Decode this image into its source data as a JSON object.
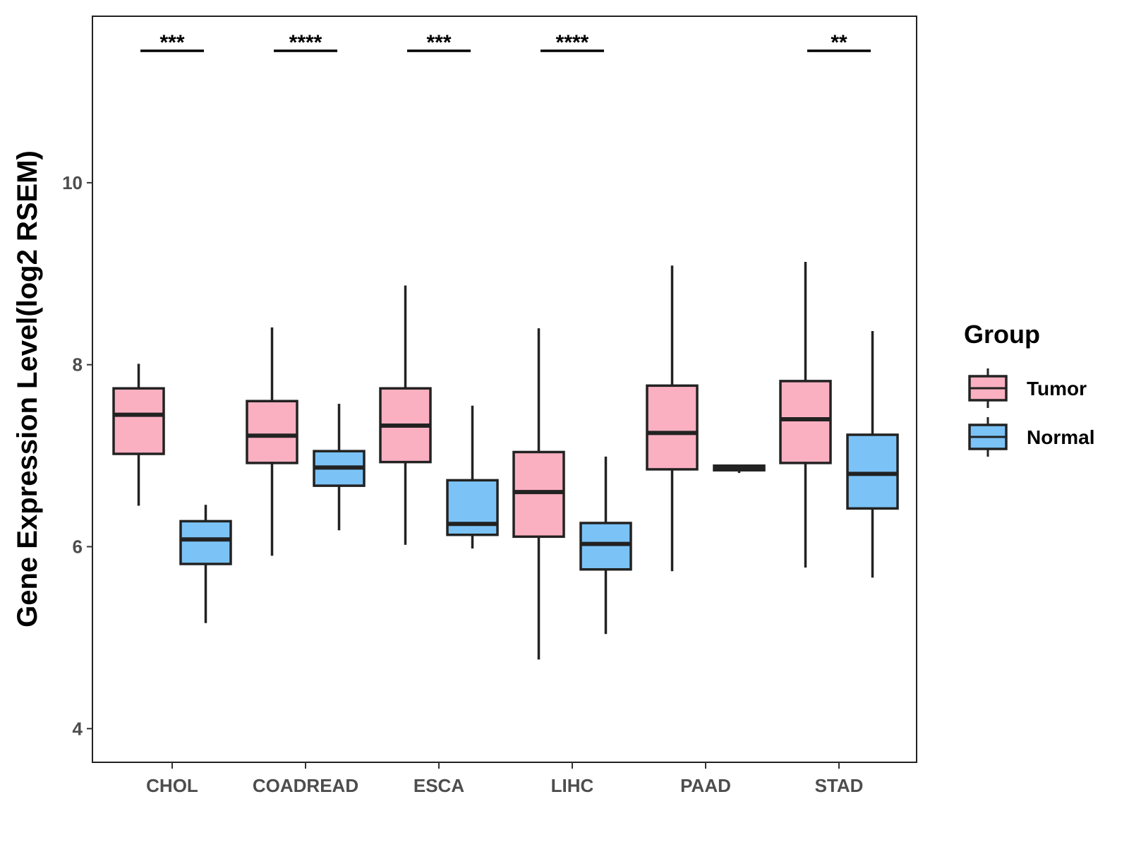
{
  "chart_data": {
    "type": "boxplot",
    "title": "",
    "xlabel": "",
    "ylabel": "Gene Expression Level(log2 RSEM)",
    "ylim": [
      3.63,
      11.83
    ],
    "yticks": [
      4,
      6,
      8,
      10
    ],
    "grid": false,
    "legend": {
      "title": "Group",
      "position": "right",
      "entries": [
        "Tumor",
        "Normal"
      ]
    },
    "colors": {
      "Tumor": "#fbb0c2",
      "Normal": "#7bc3f7",
      "outline": "#222222"
    },
    "categories": [
      "CHOL",
      "COADREAD",
      "ESCA",
      "LIHC",
      "PAAD",
      "STAD"
    ],
    "series": [
      {
        "name": "Tumor",
        "boxes": [
          {
            "category": "CHOL",
            "min": 6.45,
            "q1": 7.02,
            "median": 7.45,
            "q3": 7.74,
            "max": 8.01
          },
          {
            "category": "COADREAD",
            "min": 5.9,
            "q1": 6.92,
            "median": 7.22,
            "q3": 7.6,
            "max": 8.41
          },
          {
            "category": "ESCA",
            "min": 6.02,
            "q1": 6.93,
            "median": 7.33,
            "q3": 7.74,
            "max": 8.87
          },
          {
            "category": "LIHC",
            "min": 4.76,
            "q1": 6.11,
            "median": 6.6,
            "q3": 7.04,
            "max": 8.4
          },
          {
            "category": "PAAD",
            "min": 5.73,
            "q1": 6.85,
            "median": 7.25,
            "q3": 7.77,
            "max": 9.09
          },
          {
            "category": "STAD",
            "min": 5.77,
            "q1": 6.92,
            "median": 7.4,
            "q3": 7.82,
            "max": 9.13
          }
        ]
      },
      {
        "name": "Normal",
        "boxes": [
          {
            "category": "CHOL",
            "min": 5.16,
            "q1": 5.81,
            "median": 6.08,
            "q3": 6.28,
            "max": 6.46
          },
          {
            "category": "COADREAD",
            "min": 6.18,
            "q1": 6.67,
            "median": 6.87,
            "q3": 7.05,
            "max": 7.57
          },
          {
            "category": "ESCA",
            "min": 5.98,
            "q1": 6.13,
            "median": 6.25,
            "q3": 6.73,
            "max": 7.55
          },
          {
            "category": "LIHC",
            "min": 5.04,
            "q1": 5.75,
            "median": 6.03,
            "q3": 6.26,
            "max": 6.99
          },
          {
            "category": "PAAD",
            "min": 6.81,
            "q1": 6.84,
            "median": 6.86,
            "q3": 6.89,
            "max": 6.9
          },
          {
            "category": "STAD",
            "min": 5.66,
            "q1": 6.42,
            "median": 6.8,
            "q3": 7.23,
            "max": 8.37
          }
        ]
      }
    ],
    "significance": [
      {
        "category": "CHOL",
        "label": "***",
        "y": 11.45
      },
      {
        "category": "COADREAD",
        "label": "****",
        "y": 11.45
      },
      {
        "category": "ESCA",
        "label": "***",
        "y": 11.45
      },
      {
        "category": "LIHC",
        "label": "****",
        "y": 11.45
      },
      {
        "category": "STAD",
        "label": "**",
        "y": 11.45
      }
    ]
  }
}
